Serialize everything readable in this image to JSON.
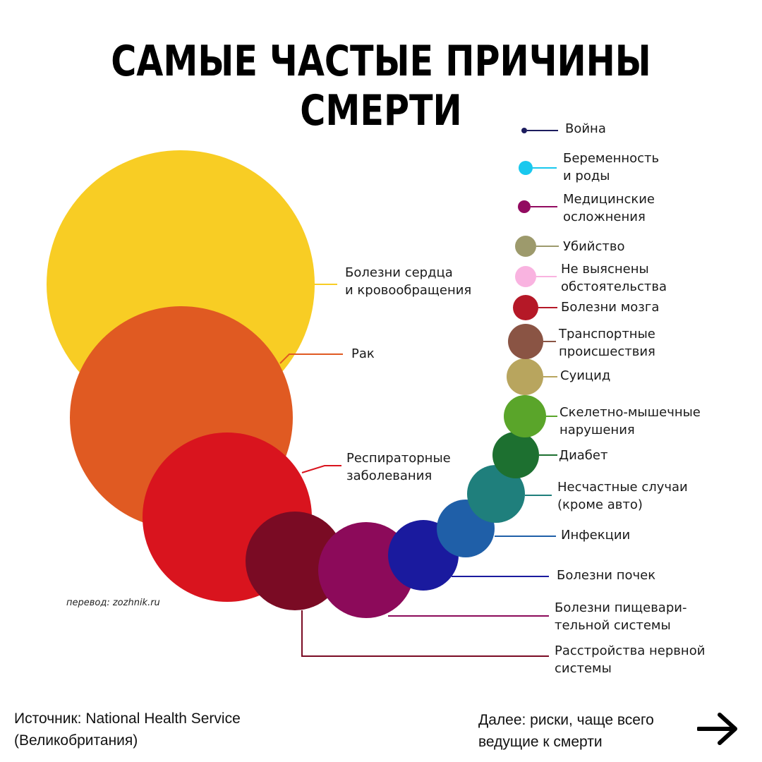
{
  "title": "САМЫЕ ЧАСТЫЕ ПРИЧИНЫ СМЕРТИ",
  "credit": "перевод: zozhnik.ru",
  "footer": {
    "source_line1": "Источник: National Health Service",
    "source_line2": "(Великобритания)",
    "next_line1": "Далее: риски, чаще всего",
    "next_line2": "ведущие к смерти"
  },
  "chart_data": {
    "type": "bubble",
    "title": "САМЫЕ ЧАСТЫЕ ПРИЧИНЫ СМЕРТИ",
    "items": [
      {
        "label": [
          "Болезни сердца",
          "и кровообращения"
        ],
        "rank": 1,
        "color": "#f8cd24"
      },
      {
        "label": [
          "Рак"
        ],
        "rank": 2,
        "color": "#e05a22"
      },
      {
        "label": [
          "Респираторные",
          "заболевания"
        ],
        "rank": 3,
        "color": "#d9141e"
      },
      {
        "label": [
          "Расстройства нервной",
          "системы"
        ],
        "rank": 4,
        "color": "#7a0b24"
      },
      {
        "label": [
          "Болезни пищевари-",
          "тельной системы"
        ],
        "rank": 5,
        "color": "#8c0a5a"
      },
      {
        "label": [
          "Болезни почек"
        ],
        "rank": 6,
        "color": "#1a1a9e"
      },
      {
        "label": [
          "Инфекции"
        ],
        "rank": 7,
        "color": "#1f5fa8"
      },
      {
        "label": [
          "Несчастные случаи",
          "(кроме авто)"
        ],
        "rank": 8,
        "color": "#1f7f7c"
      },
      {
        "label": [
          "Диабет"
        ],
        "rank": 9,
        "color": "#1d7030"
      },
      {
        "label": [
          "Скелетно-мышечные",
          "нарушения"
        ],
        "rank": 10,
        "color": "#5aa52a"
      },
      {
        "label": [
          "Суицид"
        ],
        "rank": 11,
        "color": "#b8a55e"
      },
      {
        "label": [
          "Транспортные",
          "происшествия"
        ],
        "rank": 12,
        "color": "#8a5444"
      },
      {
        "label": [
          "Болезни мозга"
        ],
        "rank": 13,
        "color": "#b51827"
      },
      {
        "label": [
          "Не выяснены",
          "обстоятельства"
        ],
        "rank": 14,
        "color": "#f9b3e0"
      },
      {
        "label": [
          "Убийство"
        ],
        "rank": 15,
        "color": "#9d9a6c"
      },
      {
        "label": [
          "Медицинские",
          "осложнения"
        ],
        "rank": 16,
        "color": "#920a60"
      },
      {
        "label": [
          "Беременность",
          "и роды"
        ],
        "rank": 17,
        "color": "#19c8ee"
      },
      {
        "label": [
          "Война"
        ],
        "rank": 18,
        "color": "#1c1c5e"
      }
    ]
  }
}
